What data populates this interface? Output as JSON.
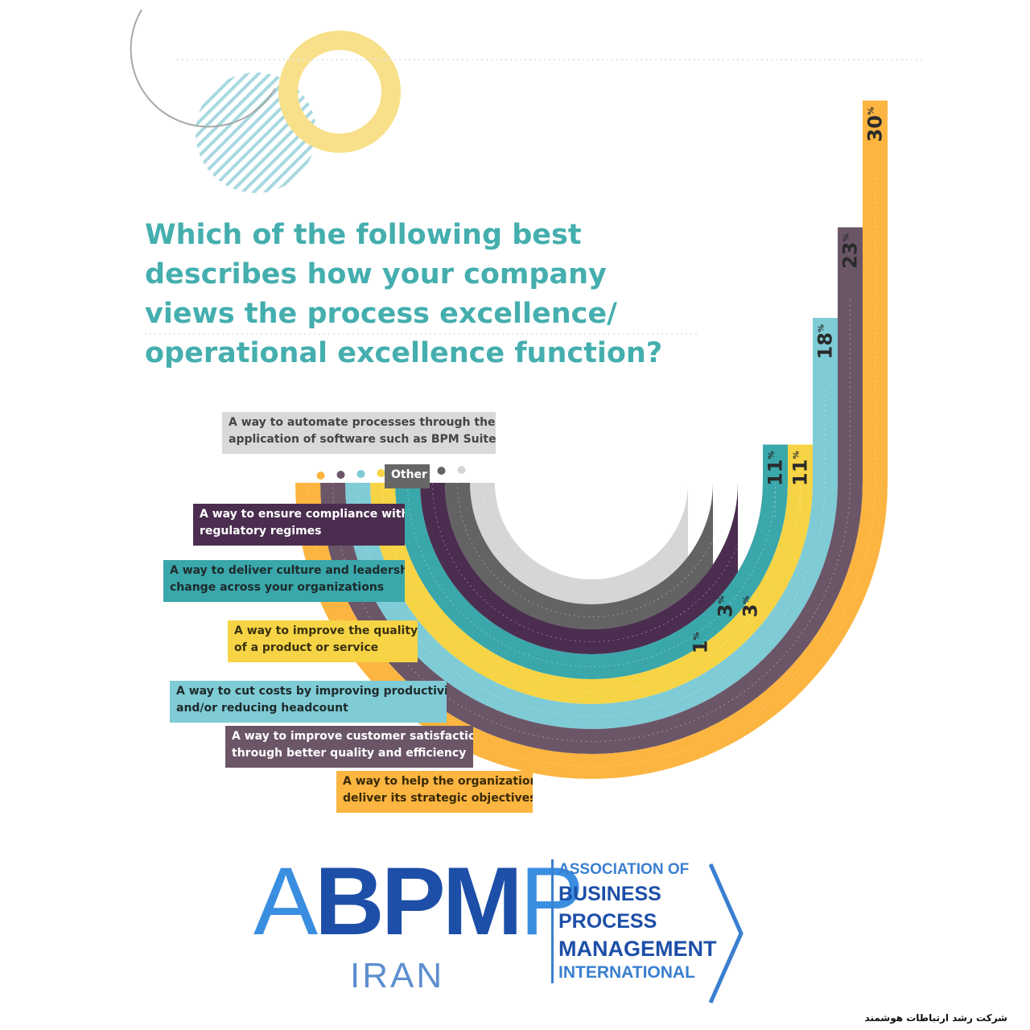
{
  "chart_data": {
    "type": "radial-bar",
    "title_lines": [
      "Which of the following best",
      "describes how your company",
      "views the process excellence/",
      "operational excellence function?"
    ],
    "unit": "%",
    "series": [
      {
        "label_lines": [
          "A way to automate processes through the",
          "application of software such as BPM Suites"
        ],
        "value": 1,
        "display": "1",
        "color": "#d6d6d6",
        "label_bg": "#d9d9d9",
        "label_fg": "#444444"
      },
      {
        "label_lines": [
          "Other"
        ],
        "value": 3,
        "display": "3",
        "color": "#636363",
        "label_bg": "#666666",
        "label_fg": "#ffffff"
      },
      {
        "label_lines": [
          "A way to ensure compliance with",
          "regulatory regimes"
        ],
        "value": 3,
        "display": "3",
        "color": "#4b2e4f",
        "label_bg": "#4b2e4f",
        "label_fg": "#ffffff"
      },
      {
        "label_lines": [
          "A way to deliver culture and leadership",
          "change across your organizations"
        ],
        "value": 11,
        "display": "11",
        "color": "#3aa7ab",
        "label_bg": "#3aa7ab",
        "label_fg": "#1e2a2a"
      },
      {
        "label_lines": [
          "A way to improve the quality",
          "of a product or service"
        ],
        "value": 11,
        "display": "11",
        "color": "#f7d445",
        "label_bg": "#f7d445",
        "label_fg": "#3a3210"
      },
      {
        "label_lines": [
          "A way to cut costs by improving productivity",
          "and/or reducing headcount"
        ],
        "value": 18,
        "display": "18",
        "color": "#7fcbd6",
        "label_bg": "#7fcbd6",
        "label_fg": "#1e2a2a"
      },
      {
        "label_lines": [
          "A way to improve customer satisfaction",
          "through better quality and efficiency"
        ],
        "value": 23,
        "display": "23",
        "color": "#6b5668",
        "label_bg": "#6b5668",
        "label_fg": "#ffffff"
      },
      {
        "label_lines": [
          "A way to help the organization",
          "deliver its strategic objectives"
        ],
        "value": 30,
        "display": "30",
        "color": "#fbb540",
        "label_bg": "#fbb540",
        "label_fg": "#3a2a08"
      }
    ]
  },
  "logo": {
    "thin_a": "A",
    "bold_bpm": "BPM",
    "thin_p": "P",
    "country": "IRAN",
    "assoc_lines": [
      "ASSOCIATION OF",
      "BUSINESS",
      "PROCESS",
      "MANAGEMENT",
      "INTERNATIONAL"
    ]
  },
  "footer_text": "شرکت رشد ارتباطات هوشمند",
  "decor_colors": {
    "ring_yellow": "#f8e08a",
    "ring_grey": "#a8a8a8",
    "stripes": "#a6d8df"
  }
}
